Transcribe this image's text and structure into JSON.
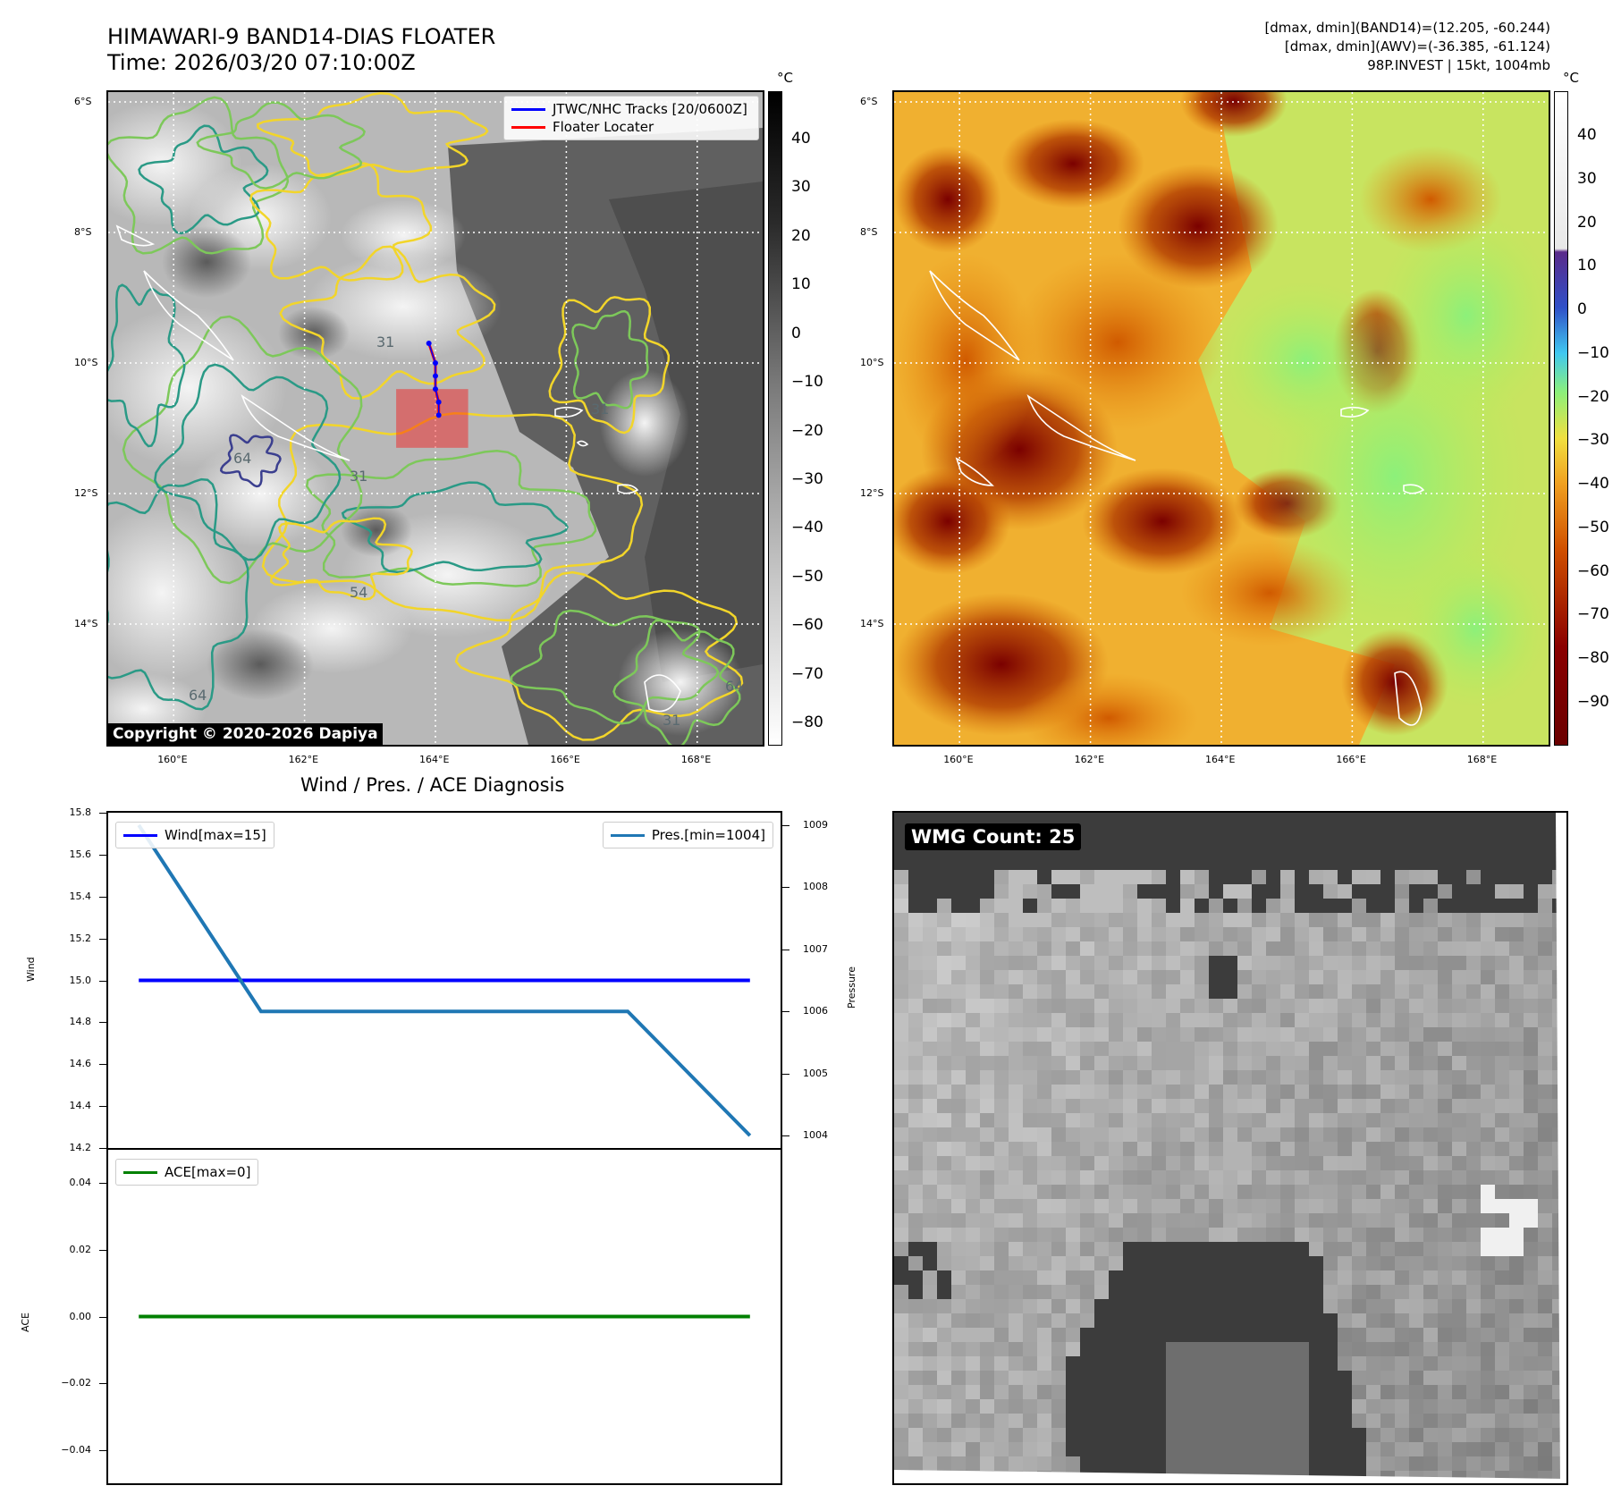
{
  "header": {
    "title_line1": "HIMAWARI-9 BAND14-DIAS FLOATER",
    "title_line2": "Time: 2026/03/20 07:10:00Z",
    "info_line1": "[dmax, dmin](BAND14)=(12.205, -60.244)",
    "info_line2": "[dmax, dmin](AWV)=(-36.385, -61.124)",
    "info_line3": "98P.INVEST | 15kt, 1004mb"
  },
  "map": {
    "lat_ticks": [
      "6°S",
      "8°S",
      "10°S",
      "12°S",
      "14°S"
    ],
    "lon_ticks": [
      "160°E",
      "162°E",
      "164°E",
      "166°E",
      "168°E"
    ],
    "copyright": "Copyright © 2020-2026 Dapiya",
    "legend": [
      {
        "label": "JTWC/NHC Tracks [20/0600Z]",
        "color": "#0000ff"
      },
      {
        "label": "Floater Locater",
        "color": "#ff0000"
      }
    ],
    "contour_labels": [
      "31",
      "64",
      "54"
    ],
    "track_points": [
      {
        "lon": 163.9,
        "lat": -9.7
      },
      {
        "lon": 164.0,
        "lat": -10.0
      },
      {
        "lon": 164.0,
        "lat": -10.2
      },
      {
        "lon": 164.0,
        "lat": -10.4
      },
      {
        "lon": 164.05,
        "lat": -10.6
      },
      {
        "lon": 164.05,
        "lat": -10.8
      }
    ],
    "floater_box": {
      "lon_min": 163.4,
      "lon_max": 164.5,
      "lat_min": -11.3,
      "lat_max": -10.4
    },
    "colors": {
      "track": "#0000ff",
      "floater": "#ff0000",
      "contour_yellow": "#f2d52a",
      "contour_green": "#7dc85a",
      "contour_teal": "#2a9a86",
      "contour_navy": "#3b3f8f"
    }
  },
  "colorbar_left": {
    "unit": "°C",
    "ticks": [
      "40",
      "30",
      "20",
      "10",
      "0",
      "−10",
      "−20",
      "−30",
      "−40",
      "−50",
      "−60",
      "−70",
      "−80"
    ]
  },
  "colorbar_right": {
    "unit": "°C",
    "ticks": [
      "40",
      "30",
      "20",
      "10",
      "0",
      "−10",
      "−20",
      "−30",
      "−40",
      "−50",
      "−60",
      "−70",
      "−80",
      "−90"
    ]
  },
  "diagnosis": {
    "title": "Wind / Pres. / ACE Diagnosis",
    "wind_ylabel": "Wind",
    "pressure_ylabel": "Pressure",
    "ace_ylabel": "ACE",
    "wind_legend": "Wind[max=15]",
    "pressure_legend": "Pres.[min=1004]",
    "ace_legend": "ACE[max=0]",
    "wind_ticks": [
      "15.8",
      "15.6",
      "15.4",
      "15.2",
      "15.0",
      "14.8",
      "14.6",
      "14.4",
      "14.2"
    ],
    "pressure_ticks": [
      "1009",
      "1008",
      "1007",
      "1006",
      "1005",
      "1004"
    ],
    "ace_ticks": [
      "0.04",
      "0.02",
      "0.00",
      "−0.02",
      "−0.04"
    ],
    "colors": {
      "wind": "#0000ff",
      "pressure": "#1f77b4",
      "ace": "#008000"
    }
  },
  "wmg": {
    "label": "WMG Count: 25"
  },
  "chart_data": [
    {
      "type": "line",
      "title": "Wind / Pres. / ACE Diagnosis",
      "x": [
        0,
        1,
        2,
        3,
        4,
        5
      ],
      "series": [
        {
          "name": "Wind[max=15]",
          "axis": "Wind",
          "values": [
            15,
            15,
            15,
            15,
            15,
            15
          ]
        },
        {
          "name": "Pres.[min=1004]",
          "axis": "Pressure",
          "values": [
            1009,
            1006,
            1006,
            1006,
            1006,
            1004
          ]
        }
      ],
      "ylim_wind": [
        14.2,
        15.8
      ],
      "ylim_pressure": [
        1003.8,
        1009.2
      ],
      "legend": "top-left and top-right"
    },
    {
      "type": "line",
      "x": [
        0,
        1,
        2,
        3,
        4,
        5
      ],
      "series": [
        {
          "name": "ACE[max=0]",
          "axis": "ACE",
          "values": [
            0,
            0,
            0,
            0,
            0,
            0
          ]
        }
      ],
      "ylim": [
        -0.05,
        0.05
      ],
      "legend": "top-left"
    }
  ]
}
